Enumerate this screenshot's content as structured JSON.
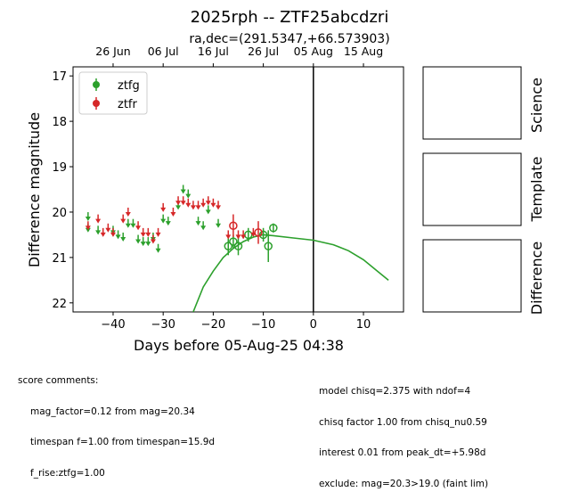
{
  "chart_data": {
    "type": "scatter",
    "title": "2025rph -- ZTF25abcdzri",
    "subtitle": "ra,dec=(291.5347,+66.573903)",
    "xlabel": "Days before 05-Aug-25 04:38",
    "ylabel": "Difference magnitude",
    "xlim": [
      -48,
      18
    ],
    "ylim": [
      22.2,
      16.8
    ],
    "x_ticks": [
      -40,
      -30,
      -20,
      -10,
      0,
      10
    ],
    "y_ticks": [
      17,
      18,
      19,
      20,
      21,
      22
    ],
    "top_axis_ticks": [
      {
        "label": "26 Jun",
        "x": -40
      },
      {
        "label": "06 Jul",
        "x": -30
      },
      {
        "label": "16 Jul",
        "x": -20
      },
      {
        "label": "26 Jul",
        "x": -10
      },
      {
        "label": "05 Aug",
        "x": 0
      },
      {
        "label": "15 Aug",
        "x": 10
      }
    ],
    "vline_x": 0,
    "legend_position": "top-left",
    "series": [
      {
        "name": "ztfg",
        "color": "#2ca02c",
        "upper_limits": [
          {
            "x": -45,
            "y": 20.1
          },
          {
            "x": -45,
            "y": 20.35
          },
          {
            "x": -43,
            "y": 20.4
          },
          {
            "x": -40,
            "y": 20.4
          },
          {
            "x": -39,
            "y": 20.5
          },
          {
            "x": -38,
            "y": 20.55
          },
          {
            "x": -37,
            "y": 20.25
          },
          {
            "x": -36,
            "y": 20.25
          },
          {
            "x": -35,
            "y": 20.6
          },
          {
            "x": -34,
            "y": 20.65
          },
          {
            "x": -33,
            "y": 20.65
          },
          {
            "x": -32,
            "y": 20.55
          },
          {
            "x": -31,
            "y": 20.8
          },
          {
            "x": -30,
            "y": 20.15
          },
          {
            "x": -29,
            "y": 20.2
          },
          {
            "x": -27,
            "y": 19.85
          },
          {
            "x": -26,
            "y": 19.5
          },
          {
            "x": -25,
            "y": 19.6
          },
          {
            "x": -23,
            "y": 20.2
          },
          {
            "x": -22,
            "y": 20.3
          },
          {
            "x": -21,
            "y": 19.95
          },
          {
            "x": -19,
            "y": 20.25
          }
        ],
        "detections": [
          {
            "x": -17,
            "y": 20.75,
            "err": 0.2
          },
          {
            "x": -16,
            "y": 20.65,
            "err": 0.15
          },
          {
            "x": -15,
            "y": 20.75,
            "err": 0.2
          },
          {
            "x": -13,
            "y": 20.5,
            "err": 0.15
          },
          {
            "x": -10,
            "y": 20.5,
            "err": 0.15
          },
          {
            "x": -9,
            "y": 20.75,
            "err": 0.35
          },
          {
            "x": -8,
            "y": 20.35,
            "err": 0.1
          }
        ],
        "model": [
          {
            "x": -24,
            "y": 22.2
          },
          {
            "x": -22,
            "y": 21.65
          },
          {
            "x": -20,
            "y": 21.3
          },
          {
            "x": -18,
            "y": 21.0
          },
          {
            "x": -16,
            "y": 20.8
          },
          {
            "x": -14,
            "y": 20.65
          },
          {
            "x": -12,
            "y": 20.55
          },
          {
            "x": -10,
            "y": 20.5
          },
          {
            "x": -8,
            "y": 20.52
          },
          {
            "x": -4,
            "y": 20.57
          },
          {
            "x": 0,
            "y": 20.62
          },
          {
            "x": 4,
            "y": 20.72
          },
          {
            "x": 7,
            "y": 20.85
          },
          {
            "x": 10,
            "y": 21.05
          },
          {
            "x": 13,
            "y": 21.32
          },
          {
            "x": 15,
            "y": 21.5
          }
        ]
      },
      {
        "name": "ztfr",
        "color": "#d62728",
        "upper_limits": [
          {
            "x": -45,
            "y": 20.3
          },
          {
            "x": -43,
            "y": 20.15
          },
          {
            "x": -42,
            "y": 20.45
          },
          {
            "x": -41,
            "y": 20.35
          },
          {
            "x": -40,
            "y": 20.45
          },
          {
            "x": -38,
            "y": 20.15
          },
          {
            "x": -37,
            "y": 20.0
          },
          {
            "x": -35,
            "y": 20.3
          },
          {
            "x": -34,
            "y": 20.45
          },
          {
            "x": -33,
            "y": 20.45
          },
          {
            "x": -32,
            "y": 20.6
          },
          {
            "x": -31,
            "y": 20.45
          },
          {
            "x": -30,
            "y": 19.9
          },
          {
            "x": -28,
            "y": 20.0
          },
          {
            "x": -27,
            "y": 19.75
          },
          {
            "x": -26,
            "y": 19.75
          },
          {
            "x": -25,
            "y": 19.8
          },
          {
            "x": -24,
            "y": 19.85
          },
          {
            "x": -23,
            "y": 19.85
          },
          {
            "x": -22,
            "y": 19.8
          },
          {
            "x": -21,
            "y": 19.75
          },
          {
            "x": -20,
            "y": 19.8
          },
          {
            "x": -19,
            "y": 19.85
          },
          {
            "x": -17,
            "y": 20.5
          },
          {
            "x": -15,
            "y": 20.5
          },
          {
            "x": -14,
            "y": 20.5
          },
          {
            "x": -12,
            "y": 20.45
          }
        ],
        "detections": [
          {
            "x": -16,
            "y": 20.3,
            "err": 0.25
          },
          {
            "x": -11,
            "y": 20.45,
            "err": 0.25
          }
        ]
      }
    ],
    "side_panels": [
      "Science",
      "Template",
      "Difference"
    ]
  },
  "score_comments": {
    "heading": "score comments:",
    "lines": [
      "mag_factor=0.12 from mag=20.34",
      "timespan f=1.00 from timespan=15.9d",
      "f_rise:ztfg=1.00"
    ]
  },
  "model_comments": {
    "lines": [
      "model chisq=2.375 with ndof=4",
      "chisq factor 1.00 from chisq_nu0.59",
      "interest 0.01 from peak_dt=+5.98d",
      "exclude: mag=20.3>19.0 (faint lim)"
    ]
  }
}
